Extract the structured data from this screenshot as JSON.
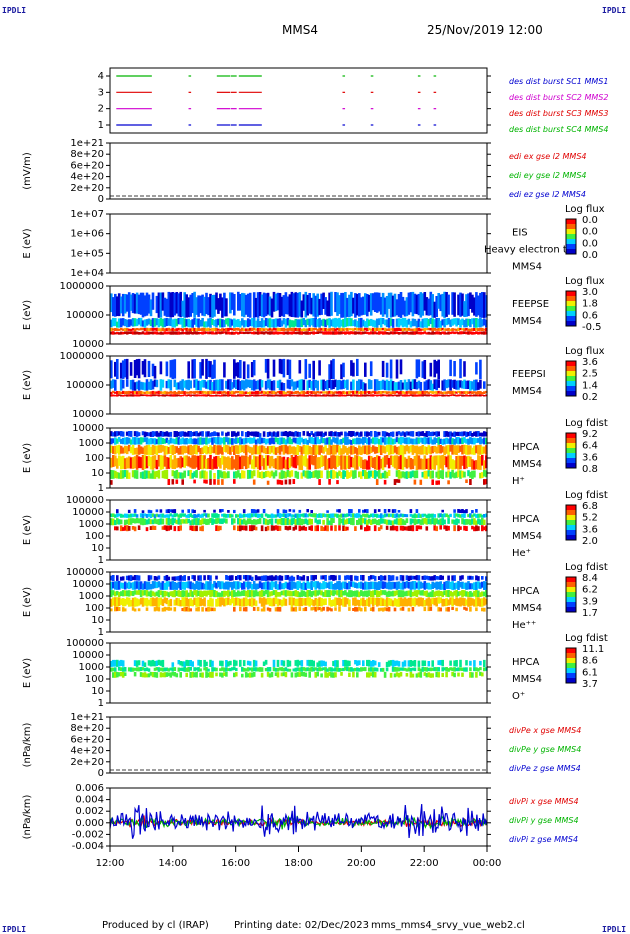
{
  "header": {
    "left_code": "IPDLI",
    "right_code": "IPDLI",
    "spacecraft": "MMS4",
    "datetime": "25/Nov/2019 12:00"
  },
  "footer": {
    "left_code": "IPDLI",
    "right_code": "IPDLI",
    "produced_by": "Produced by cl (IRAP)",
    "printing_date": "Printing date: 02/Dec/2023",
    "script_name": "mms_mms4_srvy_vue_web2.cl"
  },
  "colors": {
    "c1": "#00b400",
    "c2": "#e00000",
    "c3": "#d000d0",
    "c4": "#0000d0",
    "panel_border": "#000000"
  },
  "chart_data": {
    "type": "heatmap",
    "x_ticks": [
      "12:00",
      "14:00",
      "16:00",
      "18:00",
      "20:00",
      "22:00",
      "00:00"
    ],
    "panels": [
      {
        "id": "burst",
        "type": "timeline",
        "ylabel": "",
        "yticks": [
          "4",
          "3",
          "2",
          "1"
        ],
        "labels": [
          {
            "text": "des dist burst SC1 MMS1",
            "color": "#0000d0"
          },
          {
            "text": "des dist burst SC2 MMS2",
            "color": "#d000d0"
          },
          {
            "text": "des dist burst SC3 MMS3",
            "color": "#e00000"
          },
          {
            "text": "des dist burst SC4 MMS4",
            "color": "#00b400"
          }
        ],
        "series": [
          {
            "level": 4,
            "color": "#00b400",
            "segments": [
              [
                12.2,
                13.3
              ],
              [
                14.5,
                14.55
              ],
              [
                15.4,
                15.8
              ],
              [
                15.85,
                16.0
              ],
              [
                16.1,
                16.8
              ],
              [
                19.4,
                19.45
              ],
              [
                20.3,
                20.35
              ],
              [
                21.8,
                21.85
              ],
              [
                22.3,
                22.35
              ]
            ]
          },
          {
            "level": 3,
            "color": "#e00000",
            "segments": [
              [
                12.2,
                13.3
              ],
              [
                14.5,
                14.55
              ],
              [
                15.4,
                15.8
              ],
              [
                15.85,
                16.0
              ],
              [
                16.1,
                16.8
              ],
              [
                19.4,
                19.45
              ],
              [
                20.3,
                20.35
              ],
              [
                21.8,
                21.85
              ],
              [
                22.3,
                22.35
              ]
            ]
          },
          {
            "level": 2,
            "color": "#d000d0",
            "segments": [
              [
                12.2,
                13.3
              ],
              [
                14.5,
                14.55
              ],
              [
                15.4,
                15.8
              ],
              [
                15.85,
                16.0
              ],
              [
                16.1,
                16.8
              ],
              [
                19.4,
                19.45
              ],
              [
                20.3,
                20.35
              ],
              [
                21.8,
                21.85
              ],
              [
                22.3,
                22.35
              ]
            ]
          },
          {
            "level": 1,
            "color": "#0000d0",
            "segments": [
              [
                12.2,
                13.3
              ],
              [
                14.5,
                14.55
              ],
              [
                15.4,
                15.8
              ],
              [
                15.85,
                16.0
              ],
              [
                16.1,
                16.8
              ],
              [
                19.4,
                19.45
              ],
              [
                20.3,
                20.35
              ],
              [
                21.8,
                21.85
              ],
              [
                22.3,
                22.35
              ]
            ]
          }
        ]
      },
      {
        "id": "edi",
        "type": "line",
        "ylabel": "(mV/m)",
        "yticks": [
          "1e+21",
          "8e+20",
          "6e+20",
          "4e+20",
          "2e+20",
          "0"
        ],
        "labels": [
          {
            "text": "edi ex gse l2 MMS4",
            "color": "#e00000"
          },
          {
            "text": "edi ey gse l2 MMS4",
            "color": "#00b400"
          },
          {
            "text": "edi ez gse l2 MMS4",
            "color": "#0000d0"
          }
        ]
      },
      {
        "id": "eis",
        "type": "heatmap",
        "ylabel": "E (eV)",
        "yticks": [
          "1e+07",
          "1e+06",
          "1e+05",
          "1e+04"
        ],
        "labels": [
          {
            "text": "EIS",
            "color": "#000000"
          },
          {
            "text": "Heavy electron to",
            "color": "#000000"
          },
          {
            "text": "MMS4",
            "color": "#000000"
          }
        ],
        "colorbar": {
          "title": "Log flux",
          "ticks": [
            "0.0",
            "0.0",
            "0.0",
            "0.0"
          ]
        }
      },
      {
        "id": "feepse",
        "type": "heatmap",
        "ylabel": "E (eV)",
        "yticks": [
          "1000000",
          "100000",
          "10000"
        ],
        "labels": [
          {
            "text": "FEEPSE",
            "color": "#000000"
          },
          {
            "text": "MMS4",
            "color": "#000000"
          }
        ],
        "colorbar": {
          "title": "Log flux",
          "ticks": [
            "3.0",
            "1.8",
            "0.6",
            "-0.5"
          ]
        }
      },
      {
        "id": "feepsi",
        "type": "heatmap",
        "ylabel": "E (eV)",
        "yticks": [
          "1000000",
          "100000",
          "10000"
        ],
        "labels": [
          {
            "text": "FEEPSI",
            "color": "#000000"
          },
          {
            "text": "MMS4",
            "color": "#000000"
          }
        ],
        "colorbar": {
          "title": "Log flux",
          "ticks": [
            "3.6",
            "2.5",
            "1.4",
            "0.2"
          ]
        }
      },
      {
        "id": "hpca_h",
        "type": "heatmap",
        "ylabel": "E (eV)",
        "yticks": [
          "10000",
          "1000",
          "100",
          "10",
          "1"
        ],
        "labels": [
          {
            "text": "HPCA",
            "color": "#000000"
          },
          {
            "text": "MMS4",
            "color": "#000000"
          },
          {
            "text": "H⁺",
            "color": "#000000"
          }
        ],
        "colorbar": {
          "title": "Log fdist",
          "ticks": [
            "9.2",
            "6.4",
            "3.6",
            "0.8"
          ]
        }
      },
      {
        "id": "hpca_he",
        "type": "heatmap",
        "ylabel": "E (eV)",
        "yticks": [
          "100000",
          "10000",
          "1000",
          "100",
          "10",
          "1"
        ],
        "labels": [
          {
            "text": "HPCA",
            "color": "#000000"
          },
          {
            "text": "MMS4",
            "color": "#000000"
          },
          {
            "text": "He⁺",
            "color": "#000000"
          }
        ],
        "colorbar": {
          "title": "Log fdist",
          "ticks": [
            "6.8",
            "5.2",
            "3.6",
            "2.0"
          ]
        }
      },
      {
        "id": "hpca_hepp",
        "type": "heatmap",
        "ylabel": "E (eV)",
        "yticks": [
          "100000",
          "10000",
          "1000",
          "100",
          "10",
          "1"
        ],
        "labels": [
          {
            "text": "HPCA",
            "color": "#000000"
          },
          {
            "text": "MMS4",
            "color": "#000000"
          },
          {
            "text": "He⁺⁺",
            "color": "#000000"
          }
        ],
        "colorbar": {
          "title": "Log fdist",
          "ticks": [
            "8.4",
            "6.2",
            "3.9",
            "1.7"
          ]
        }
      },
      {
        "id": "hpca_o",
        "type": "heatmap",
        "ylabel": "E (eV)",
        "yticks": [
          "100000",
          "10000",
          "1000",
          "100",
          "10",
          "1"
        ],
        "labels": [
          {
            "text": "HPCA",
            "color": "#000000"
          },
          {
            "text": "MMS4",
            "color": "#000000"
          },
          {
            "text": "O⁺",
            "color": "#000000"
          }
        ],
        "colorbar": {
          "title": "Log fdist",
          "ticks": [
            "11.1",
            "8.6",
            "6.1",
            "3.7"
          ]
        }
      },
      {
        "id": "divpe",
        "type": "line",
        "ylabel": "(nPa/km)",
        "yticks": [
          "1e+21",
          "8e+20",
          "6e+20",
          "4e+20",
          "2e+20",
          "0"
        ],
        "labels": [
          {
            "text": "divPe x gse MMS4",
            "color": "#e00000"
          },
          {
            "text": "divPe y gse MMS4",
            "color": "#00b400"
          },
          {
            "text": "divPe z gse MMS4",
            "color": "#0000d0"
          }
        ]
      },
      {
        "id": "divpi",
        "type": "line",
        "ylabel": "(nPa/km)",
        "yticks": [
          "0.006",
          "0.004",
          "0.002",
          "0.000",
          "-0.002",
          "-0.004"
        ],
        "labels": [
          {
            "text": "divPi x gse MMS4",
            "color": "#e00000"
          },
          {
            "text": "divPi y gse MMS4",
            "color": "#00b400"
          },
          {
            "text": "divPi z gse MMS4",
            "color": "#0000d0"
          }
        ]
      }
    ]
  }
}
